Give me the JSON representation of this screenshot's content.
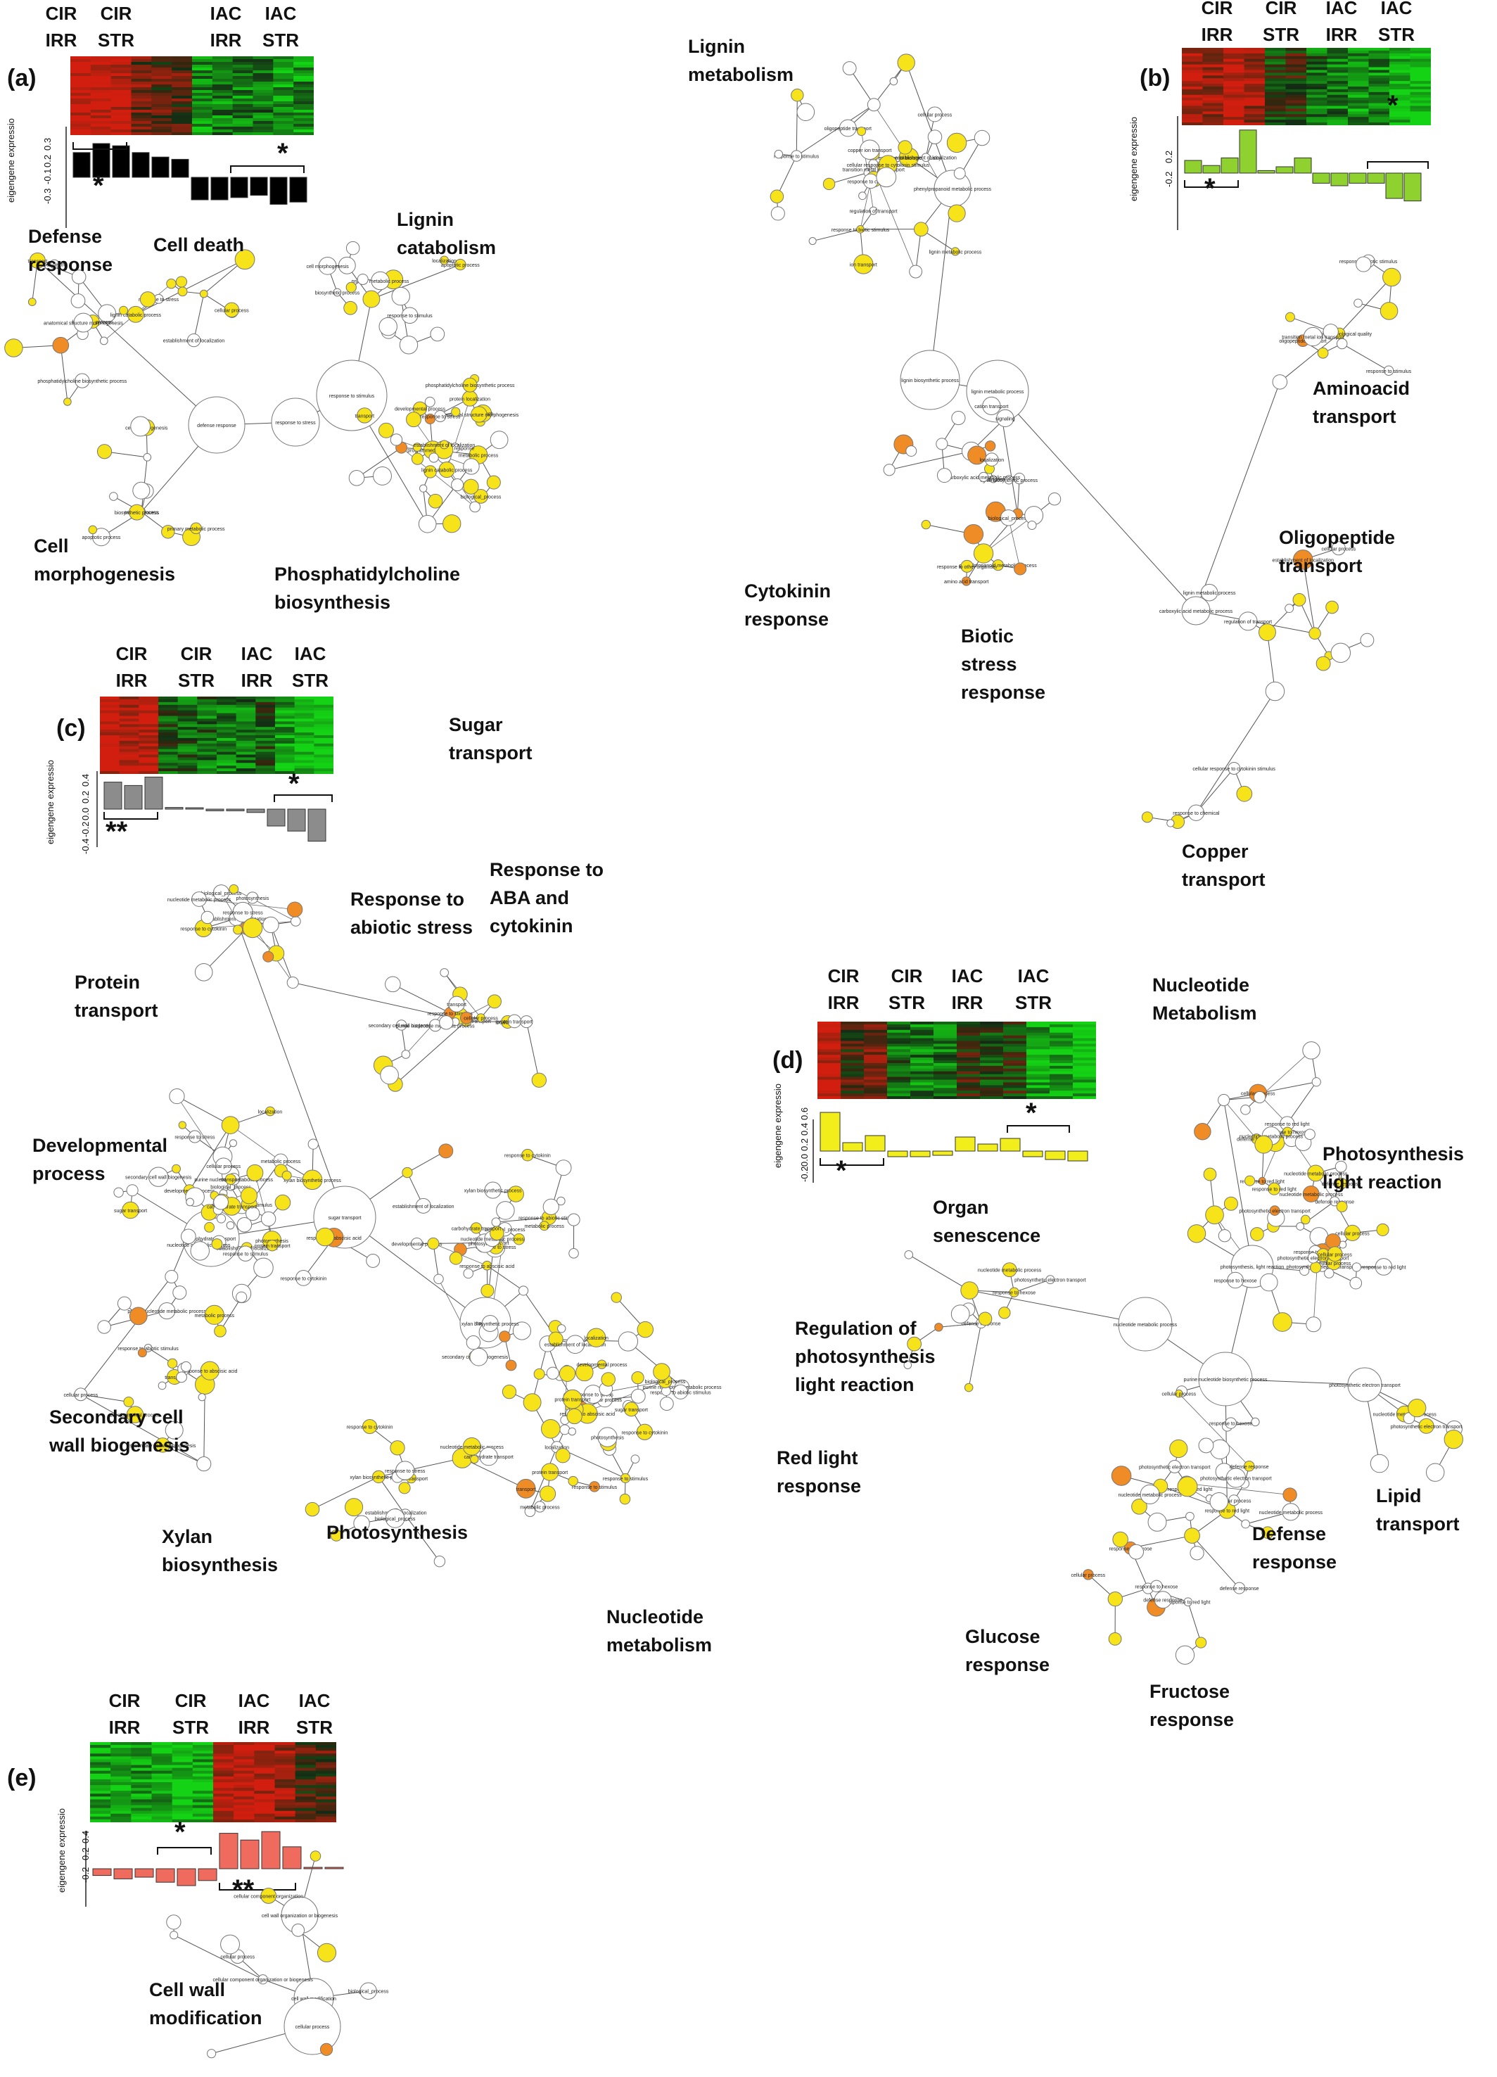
{
  "colors": {
    "a_bars": "#000000",
    "b_bars": "#8fd12f",
    "c_bars": "#8c8c8c",
    "d_bars": "#f2ee1c",
    "e_bars": "#ef6b5e",
    "node_yellow": "#f7e31a",
    "node_orange": "#ef8c25",
    "node_white": "#ffffff",
    "heat_red": "#c62a1a",
    "heat_green": "#1fbf32"
  },
  "panels": [
    {
      "id": "a",
      "label": "(a)",
      "conditions": [
        "CIR IRR",
        "CIR STR",
        "IAC IRR",
        "IAC STR"
      ],
      "ylabel": "eigengene expressio",
      "yticks": [
        "0.3",
        "0.2",
        "0.1",
        "-0.1",
        "-0.3"
      ],
      "bars": [
        0.22,
        0.3,
        0.28,
        0.22,
        0.18,
        0.16,
        -0.2,
        -0.2,
        -0.18,
        -0.16,
        -0.24,
        -0.22
      ],
      "stars": [
        "*",
        "*"
      ],
      "annotations": [
        "Defense\nresponse",
        "Cell death",
        "Lignin\ncatabolism",
        "Cell\nmorphogenesis",
        "Phosphatidylcholine\nbiosynthesis"
      ]
    },
    {
      "id": "b",
      "label": "(b)",
      "conditions": [
        "CIR IRR",
        "CIR STR",
        "IAC IRR",
        "IAC STR"
      ],
      "ylabel": "eigengene expressio",
      "yticks": [
        "0.2",
        "-0.2"
      ],
      "bars": [
        0.1,
        0.06,
        0.12,
        0.34,
        0.02,
        0.05,
        0.12,
        -0.08,
        -0.1,
        -0.08,
        -0.08,
        -0.2,
        -0.22
      ],
      "stars": [
        "*",
        "*"
      ],
      "annotations": [
        "Lignin\nmetabolism",
        "Aminoacid\ntransport",
        "Oligopeptide\ntransport",
        "Cytokinin\nresponse",
        "Biotic\nstress\nresponse",
        "Copper\ntransport"
      ]
    },
    {
      "id": "c",
      "label": "(c)",
      "conditions": [
        "CIR IRR",
        "CIR STR",
        "IAC IRR",
        "IAC STR"
      ],
      "ylabel": "eigengene expressio",
      "yticks": [
        "0.4",
        "0.2",
        "0.0",
        "-0.2",
        "-0.4"
      ],
      "bars": [
        0.32,
        0.28,
        0.38,
        0.02,
        0.0,
        -0.02,
        -0.02,
        -0.04,
        -0.2,
        -0.26,
        -0.38
      ],
      "stars": [
        "**",
        "*"
      ],
      "annotations": [
        "Sugar\ntransport",
        "Response to\nABA and\ncytokinin",
        "Response to\nabiotic  stress",
        "Protein\ntransport",
        "Developmental\nprocess",
        "Secondary cell\nwall biogenesis",
        "Xylan\nbiosynthesis",
        "Photosynthesis",
        "Nucleotide\nmetabolism"
      ]
    },
    {
      "id": "d",
      "label": "(d)",
      "conditions": [
        "CIR IRR",
        "CIR STR",
        "IAC IRR",
        "IAC STR"
      ],
      "ylabel": "eigengene expressio",
      "yticks": [
        "0.6",
        "0.4",
        "0.2",
        "0.0",
        "-0.2"
      ],
      "bars": [
        0.55,
        0.12,
        0.22,
        -0.08,
        -0.08,
        -0.06,
        0.2,
        0.1,
        0.18,
        -0.08,
        -0.12,
        -0.14
      ],
      "stars": [
        "*",
        "*"
      ],
      "annotations": [
        "Nucleotide\nMetabolism",
        "Photosynthesis\nlight reaction",
        "Organ\nsenescence",
        "Regulation of\nphotosynthesis\nlight reaction",
        "Red light\nresponse",
        "Lipid\ntransport",
        "Defense\nresponse",
        "Glucose\nresponse",
        "Fructose\nresponse"
      ]
    },
    {
      "id": "e",
      "label": "(e)",
      "conditions": [
        "CIR IRR",
        "CIR STR",
        "IAC IRR",
        "IAC STR"
      ],
      "ylabel": "eigengene expressio",
      "yticks": [
        "0.4",
        "0.2",
        "-0.2"
      ],
      "bars": [
        -0.08,
        -0.12,
        -0.1,
        -0.16,
        -0.2,
        -0.14,
        0.42,
        0.34,
        0.44,
        0.26,
        0.0,
        0.0
      ],
      "stars": [
        "*",
        "**"
      ],
      "annotations": [
        "Cell wall\nmodification"
      ]
    }
  ],
  "node_labels": {
    "a": [
      "defense response",
      "response to stress",
      "response to stimulus",
      "transport",
      "establishment of localization",
      "localization",
      "biological_process",
      "cellular process",
      "metabolic process",
      "lignin catabolic process",
      "apoptotic process",
      "programmed cell death",
      "cell death",
      "primary metabolic process",
      "developmental process",
      "anatomical structure morphogenesis",
      "cell morphogenesis",
      "protein localization",
      "phosphatidylcholine biosynthetic process",
      "biosynthetic process"
    ],
    "b": [
      "lignin biosynthetic process",
      "lignin metabolic process",
      "phenylpropanoid metabolic process",
      "carboxylic acid metabolic process",
      "cellular process",
      "biological_process",
      "regulation of biological quality",
      "regulation of transport",
      "amino acid transport",
      "response to stimulus",
      "response to chemical",
      "response to other organism",
      "response to biotic stimulus",
      "cellular response to cytokinin stimulus",
      "transport",
      "oligopeptide transport",
      "ion transport",
      "cation transport",
      "transition metal ion transport",
      "copper ion transport",
      "localization",
      "establishment of localization",
      "signaling"
    ],
    "c": [
      "sugar transport",
      "carbohydrate transport",
      "transport",
      "establishment of localization",
      "localization",
      "response to abiotic stimulus",
      "response to stress",
      "response to stimulus",
      "response to abscisic acid",
      "response to cytokinin",
      "protein transport",
      "developmental process",
      "biological_process",
      "cellular process",
      "metabolic process",
      "photosynthesis",
      "secondary cell wall biogenesis",
      "xylan biosynthetic process",
      "nucleotide metabolic process",
      "purine nucleotide metabolic process"
    ],
    "d": [
      "nucleotide metabolic process",
      "purine nucleotide biosynthetic process",
      "photosynthesis, light reaction",
      "photosynthetic electron transport",
      "leaf senescence",
      "regulation of photosynthesis",
      "response to red light",
      "biological_process",
      "metabolic process",
      "cellular process",
      "response to stimulus",
      "lipid transport",
      "defense response",
      "response to glucose",
      "response to fructose",
      "response to hexose",
      "localization",
      "transport"
    ],
    "e": [
      "cell wall organization or biogenesis",
      "cell wall modification",
      "cellular process",
      "cellular component organization",
      "external encapsulating structure organization",
      "biological_process",
      "cellular component organization or biogenesis"
    ]
  }
}
